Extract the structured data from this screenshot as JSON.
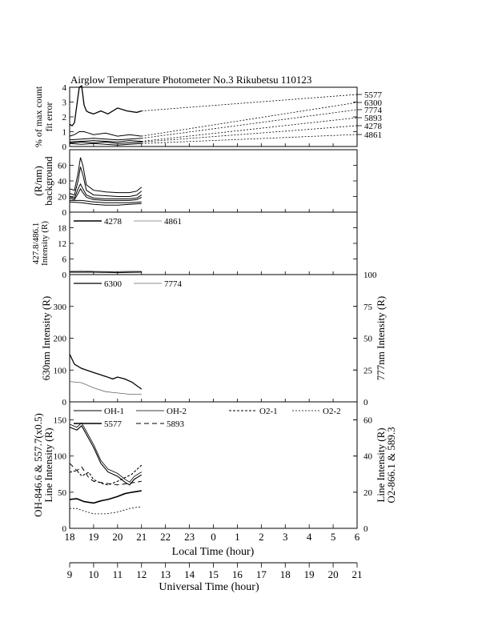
{
  "title": "Airglow Temperature Photometer No.3   Rikubetsu    110123",
  "lt_ticks": [
    "18",
    "19",
    "20",
    "21",
    "22",
    "23",
    "0",
    "1",
    "2",
    "3",
    "4",
    "5",
    "6"
  ],
  "ut_ticks": [
    "9",
    "10",
    "11",
    "12",
    "13",
    "14",
    "15",
    "16",
    "17",
    "18",
    "19",
    "20",
    "21"
  ],
  "lt_label": "Local Time (hour)",
  "ut_label": "Universal Time (hour)",
  "chart_data": [
    {
      "type": "line",
      "panel": "fit-error",
      "ylabel": [
        "% of max count",
        "fit error"
      ],
      "ylim": [
        0,
        4
      ],
      "yticks": [
        "0",
        "1",
        "2",
        "3",
        "4"
      ],
      "x_lt_range": [
        18,
        30
      ],
      "series": [
        {
          "name": "5577",
          "x": [
            18.0,
            18.1,
            18.2,
            18.3,
            18.4,
            18.5,
            18.6,
            18.7,
            18.8,
            19.0,
            19.3,
            19.6,
            20.0,
            20.4,
            20.8,
            21.0
          ],
          "y": [
            1.5,
            1.4,
            1.6,
            2.8,
            4.0,
            4.1,
            2.8,
            2.4,
            2.3,
            2.2,
            2.4,
            2.2,
            2.6,
            2.4,
            2.3,
            2.4
          ]
        },
        {
          "name": "6300",
          "x": [
            18.0,
            18.2,
            18.4,
            18.6,
            18.8,
            19.0,
            19.5,
            20.0,
            20.5,
            21.0
          ],
          "y": [
            0.7,
            0.8,
            1.0,
            1.0,
            0.9,
            0.8,
            0.9,
            0.7,
            0.8,
            0.7
          ]
        },
        {
          "name": "7774",
          "x": [
            18.0,
            18.5,
            19.0,
            19.5,
            20.0,
            20.5,
            21.0
          ],
          "y": [
            0.45,
            0.5,
            0.55,
            0.5,
            0.45,
            0.5,
            0.55
          ]
        },
        {
          "name": "5893",
          "x": [
            18.0,
            18.5,
            19.0,
            19.5,
            20.0,
            20.5,
            21.0
          ],
          "y": [
            0.3,
            0.35,
            0.4,
            0.35,
            0.3,
            0.4,
            0.35
          ]
        },
        {
          "name": "4278",
          "x": [
            18.0,
            18.5,
            19.0,
            19.5,
            20.0,
            20.5,
            21.0
          ],
          "y": [
            0.25,
            0.3,
            0.25,
            0.3,
            0.2,
            0.25,
            0.3
          ]
        },
        {
          "name": "4861",
          "x": [
            18.0,
            18.5,
            19.0,
            19.5,
            20.0,
            20.5,
            21.0
          ],
          "y": [
            0.2,
            0.15,
            0.2,
            0.15,
            0.1,
            0.15,
            0.2
          ]
        }
      ]
    },
    {
      "type": "line",
      "panel": "background",
      "ylabel": [
        "(R/nm)",
        "background"
      ],
      "ylim": [
        0,
        80
      ],
      "yticks": [
        "0",
        "20",
        "40",
        "60"
      ],
      "series": [
        {
          "x": [
            18.0,
            18.2,
            18.35,
            18.45,
            18.55,
            18.7,
            19.0,
            19.5,
            20.0,
            20.5,
            20.8,
            21.0
          ],
          "y": [
            30,
            28,
            50,
            70,
            60,
            35,
            28,
            26,
            25,
            25,
            27,
            32
          ]
        },
        {
          "x": [
            18.0,
            18.2,
            18.35,
            18.45,
            18.55,
            18.7,
            19.0,
            19.5,
            20.0,
            20.5,
            20.8,
            21.0
          ],
          "y": [
            24,
            22,
            40,
            58,
            48,
            28,
            22,
            21,
            20,
            20,
            22,
            27
          ]
        },
        {
          "x": [
            18.0,
            18.2,
            18.35,
            18.45,
            18.55,
            18.7,
            19.0,
            19.5,
            20.0,
            20.5,
            20.8,
            21.0
          ],
          "y": [
            20,
            18,
            30,
            36,
            30,
            22,
            18,
            17,
            17,
            17,
            18,
            22
          ]
        },
        {
          "x": [
            18.0,
            18.2,
            18.35,
            18.45,
            18.55,
            18.7,
            19.0,
            19.5,
            20.0,
            20.5,
            20.8,
            21.0
          ],
          "y": [
            18,
            16,
            24,
            30,
            25,
            19,
            16,
            15,
            15,
            15,
            16,
            19
          ]
        },
        {
          "x": [
            18.0,
            18.5,
            19.0,
            19.5,
            20.0,
            20.5,
            21.0
          ],
          "y": [
            15,
            15,
            13,
            12,
            12,
            12,
            13
          ]
        },
        {
          "x": [
            18.0,
            18.5,
            19.0,
            19.5,
            20.0,
            20.5,
            21.0
          ],
          "y": [
            13,
            12,
            10,
            9,
            9,
            10,
            11
          ]
        }
      ]
    },
    {
      "type": "line",
      "panel": "hbeta",
      "ylabel": [
        "427.8/486.1",
        "Intensity (R)"
      ],
      "ylim": [
        0,
        24
      ],
      "yticks": [
        "0",
        "6",
        "12",
        "18"
      ],
      "series": [
        {
          "name": "4278",
          "x": [
            18.0,
            18.5,
            19.0,
            19.5,
            20.0,
            20.5,
            21.0
          ],
          "y": [
            1.0,
            1.0,
            1.0,
            0.9,
            0.8,
            0.9,
            1.0
          ]
        },
        {
          "name": "4861",
          "x": [
            18.0,
            18.5,
            19.0,
            19.5,
            20.0,
            20.5,
            21.0
          ],
          "y": [
            1.4,
            1.5,
            1.3,
            1.2,
            1.2,
            1.3,
            1.3
          ]
        }
      ]
    },
    {
      "type": "line",
      "panel": "630-777",
      "ylabel": "630nm Intensity (R)",
      "ylabel_right": "777nm Intensity (R)",
      "ylim": [
        0,
        400
      ],
      "yticks": [
        "0",
        "100",
        "200",
        "300"
      ],
      "ylim_right": [
        0,
        100
      ],
      "yticks_right": [
        "0",
        "25",
        "50",
        "75",
        "100"
      ],
      "series": [
        {
          "name": "6300",
          "x": [
            18.0,
            18.2,
            18.5,
            19.0,
            19.5,
            19.8,
            20.0,
            20.3,
            20.6,
            21.0
          ],
          "y": [
            150,
            118,
            105,
            92,
            80,
            72,
            78,
            72,
            62,
            40
          ]
        },
        {
          "name": "7774",
          "axis": "right",
          "x": [
            18.0,
            18.5,
            19.0,
            19.5,
            20.0,
            20.5,
            21.0
          ],
          "y": [
            16,
            15,
            11,
            8,
            7,
            6,
            6
          ]
        }
      ]
    },
    {
      "type": "line",
      "panel": "oh-o2",
      "ylabel": [
        "OH-846.6 & 557.7(x0.5)",
        "Line Intensity (R)"
      ],
      "ylabel_right": [
        "Line Intensity (R)",
        "O2-866.1 & 589.3"
      ],
      "ylim": [
        0,
        175
      ],
      "yticks": [
        "0",
        "50",
        "100",
        "150"
      ],
      "ylim_right": [
        0,
        70
      ],
      "yticks_right": [
        "0",
        "20",
        "40",
        "60"
      ],
      "series": [
        {
          "name": "OH-1",
          "x": [
            18.0,
            18.3,
            18.5,
            18.7,
            19.0,
            19.3,
            19.6,
            20.0,
            20.3,
            20.5,
            20.7,
            21.0
          ],
          "y": [
            140,
            136,
            142,
            130,
            112,
            90,
            78,
            72,
            64,
            60,
            68,
            74
          ]
        },
        {
          "name": "OH-2",
          "x": [
            18.0,
            18.3,
            18.5,
            18.7,
            19.0,
            19.3,
            19.6,
            20.0,
            20.3,
            20.5,
            20.7,
            21.0
          ],
          "y": [
            144,
            140,
            146,
            134,
            116,
            94,
            82,
            76,
            68,
            64,
            72,
            78
          ]
        },
        {
          "name": "O2-1",
          "axis": "right",
          "x": [
            18.0,
            18.3,
            18.5,
            18.8,
            19.0,
            19.3,
            19.6,
            20.0,
            20.3,
            20.6,
            21.0
          ],
          "y": [
            31,
            32,
            29,
            31,
            27,
            25,
            24,
            26,
            28,
            30,
            35
          ]
        },
        {
          "name": "O2-2",
          "axis": "right",
          "x": [
            18.0,
            18.3,
            18.5,
            19.0,
            19.5,
            20.0,
            20.5,
            21.0
          ],
          "y": [
            11,
            11,
            10,
            8,
            8,
            9,
            11,
            12
          ]
        },
        {
          "name": "5577",
          "x": [
            18.0,
            18.3,
            18.6,
            19.0,
            19.3,
            19.6,
            20.0,
            20.3,
            20.6,
            21.0
          ],
          "y": [
            40,
            41,
            37,
            35,
            38,
            40,
            44,
            48,
            50,
            52
          ]
        },
        {
          "name": "5893",
          "axis": "right",
          "x": [
            18.0,
            18.3,
            18.5,
            18.8,
            19.0,
            19.5,
            20.0,
            20.5,
            21.0
          ],
          "y": [
            36,
            32,
            34,
            28,
            26,
            25,
            24,
            25,
            26
          ]
        }
      ],
      "legend": [
        "OH-1",
        "OH-2",
        "O2-1",
        "O2-2",
        "5577",
        "5893"
      ]
    }
  ]
}
